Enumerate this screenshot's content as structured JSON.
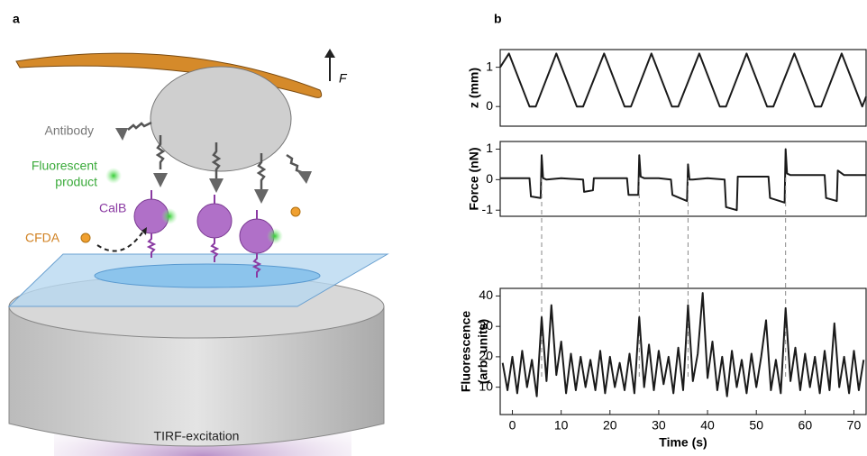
{
  "panel_labels": [
    "a",
    "b"
  ],
  "diagram": {
    "force": "F",
    "antibody": "Antibody",
    "fluorescent_product": [
      "Fluorescent",
      "product"
    ],
    "calb": "CalB",
    "cfda": "CFDA",
    "tirf": "TIRF-excitation"
  },
  "chart_data": [
    {
      "type": "line",
      "ylabel": "z (mm)",
      "color": "#1a1a1a",
      "x": [
        -2.5,
        -0.7,
        3.5,
        4.8,
        9.0,
        13.2,
        14.5,
        18.8,
        23.0,
        24.3,
        28.5,
        32.7,
        34.0,
        38.3,
        42.5,
        43.8,
        48.0,
        52.2,
        53.5,
        57.8,
        62.0,
        63.3,
        67.5,
        71.7,
        72.5
      ],
      "values": [
        1.0,
        1.35,
        0,
        0,
        1.35,
        0,
        0,
        1.35,
        0,
        0,
        1.35,
        0,
        0,
        1.35,
        0,
        0,
        1.35,
        0,
        0,
        1.35,
        0,
        0,
        1.35,
        0,
        0.25
      ],
      "xlim": [
        -2.5,
        72.5
      ],
      "ylim": [
        -0.5,
        1.45
      ],
      "yticks": [
        0,
        1
      ]
    },
    {
      "type": "line",
      "ylabel": "Force (nN)",
      "color": "#1a1a1a",
      "x": [
        -2.5,
        3.5,
        3.8,
        5.8,
        6.0,
        6.3,
        7,
        10,
        14.5,
        14.7,
        16.5,
        16.7,
        20,
        23.5,
        23.8,
        25.8,
        26.0,
        26.3,
        27,
        30,
        32.5,
        32.8,
        35.8,
        36.0,
        36.3,
        37,
        40,
        43.5,
        43.8,
        46,
        46.2,
        50,
        52.5,
        52.8,
        55.8,
        56.0,
        56.3,
        57,
        60,
        64,
        64.3,
        66.5,
        66.7,
        68,
        72.5
      ],
      "values": [
        0.05,
        0.05,
        -0.55,
        -0.6,
        0.8,
        0.05,
        0.0,
        0.05,
        0.0,
        -0.4,
        -0.35,
        0.05,
        0.05,
        0.05,
        -0.5,
        -0.5,
        0.8,
        0.1,
        0.05,
        0.05,
        0.0,
        -0.5,
        -0.7,
        0.5,
        0.0,
        0.0,
        0.05,
        0.0,
        -0.9,
        -1.0,
        0.1,
        0.1,
        0.1,
        -0.6,
        -0.75,
        1.0,
        0.2,
        0.15,
        0.15,
        0.15,
        -0.6,
        -0.7,
        0.3,
        0.15,
        0.15
      ],
      "xlim": [
        -2.5,
        72.5
      ],
      "ylim": [
        -1.2,
        1.25
      ],
      "yticks": [
        -1,
        0,
        1
      ]
    },
    {
      "type": "line",
      "ylabel": [
        "Fluorescence",
        "(arb. units)"
      ],
      "xlabel": "Time (s)",
      "color": "#1a1a1a",
      "x": [
        -2,
        -1,
        0,
        1,
        2,
        3,
        4,
        5,
        6,
        7,
        8,
        9,
        10,
        11,
        12,
        13,
        14,
        15,
        16,
        17,
        18,
        19,
        20,
        21,
        22,
        23,
        24,
        25,
        26,
        27,
        28,
        29,
        30,
        31,
        32,
        33,
        34,
        35,
        36,
        37,
        38,
        39,
        40,
        41,
        42,
        43,
        44,
        45,
        46,
        47,
        48,
        49,
        50,
        51,
        52,
        53,
        54,
        55,
        56,
        57,
        58,
        59,
        60,
        61,
        62,
        63,
        64,
        65,
        66,
        67,
        68,
        69,
        70,
        71,
        72
      ],
      "values": [
        18,
        9,
        20,
        8,
        22,
        10,
        19,
        7,
        33,
        12,
        37,
        14,
        25,
        8,
        21,
        9,
        20,
        10,
        19,
        9,
        22,
        8,
        20,
        10,
        18,
        9,
        21,
        8,
        33,
        10,
        24,
        9,
        22,
        11,
        20,
        8,
        23,
        9,
        37,
        12,
        21,
        41,
        13,
        25,
        9,
        20,
        7,
        22,
        10,
        19,
        8,
        21,
        10,
        20,
        32,
        9,
        19,
        8,
        36,
        12,
        23,
        9,
        21,
        10,
        20,
        8,
        22,
        9,
        31,
        10,
        20,
        8,
        22,
        9,
        19
      ],
      "xlim": [
        -2.5,
        72.5
      ],
      "ylim": [
        1,
        42.5
      ],
      "yticks": [
        10,
        20,
        30,
        40
      ],
      "xticks": [
        0,
        10,
        20,
        30,
        40,
        50,
        60,
        70
      ],
      "vlines": [
        6,
        26,
        36,
        56
      ]
    }
  ]
}
